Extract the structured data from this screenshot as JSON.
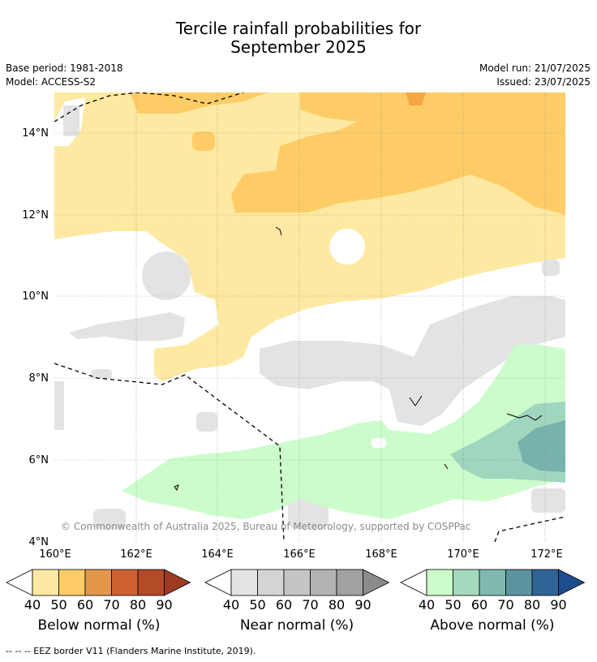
{
  "title": {
    "line1": "Tercile rainfall probabilities for",
    "line2": "September 2025"
  },
  "meta": {
    "base_period": "Base period: 1981-2018",
    "model": "Model: ACCESS-S2",
    "model_run": "Model run: 21/07/2025",
    "issued": "Issued: 23/07/2025"
  },
  "map": {
    "lat_labels": [
      "14°N",
      "12°N",
      "10°N",
      "8°N",
      "6°N",
      "4°N"
    ],
    "lon_labels": [
      "160°E",
      "162°E",
      "164°E",
      "166°E",
      "168°E",
      "170°E",
      "172°E"
    ],
    "copyright": "© Commonwealth of Australia 2025, Bureau of Meteorology, supported by COSPPac",
    "colors": {
      "below_40": "#fee9a2",
      "below_50": "#fecc66",
      "below_60": "#f4a640",
      "near_40": "#e3e3e3",
      "above_40": "#ccfccc",
      "above_50": "#9fd6bd",
      "above_60": "#78b2ad",
      "eez": "#000000"
    }
  },
  "colorbars": [
    {
      "label": "Below normal (%)",
      "ticks": [
        "40",
        "50",
        "60",
        "70",
        "80",
        "90"
      ],
      "colors": [
        "#fee9a2",
        "#fecc66",
        "#e3974a",
        "#cf6031",
        "#b34a28",
        "#9d3a20"
      ]
    },
    {
      "label": "Near normal (%)",
      "ticks": [
        "40",
        "50",
        "60",
        "70",
        "80",
        "90"
      ],
      "colors": [
        "#e3e3e3",
        "#d4d4d4",
        "#c5c5c5",
        "#b3b3b3",
        "#a1a1a1",
        "#8b8b8b"
      ]
    },
    {
      "label": "Above normal (%)",
      "ticks": [
        "40",
        "50",
        "60",
        "70",
        "80",
        "90"
      ],
      "colors": [
        "#ccfccc",
        "#a4d9bd",
        "#7fb9b0",
        "#5b949f",
        "#2e6596",
        "#1d4d8c"
      ]
    }
  ],
  "footer": "--  --  -- EEZ border V11 (Flanders Marine Institute, 2019)."
}
